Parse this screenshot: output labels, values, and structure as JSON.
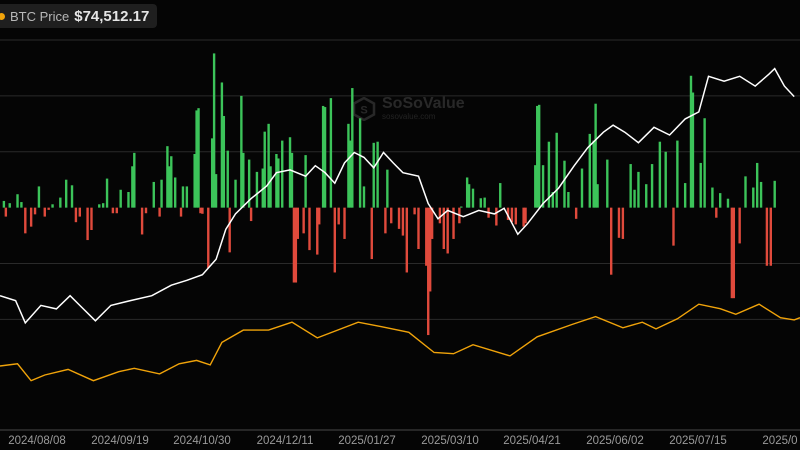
{
  "legend": {
    "label": "BTC Price",
    "value": "$74,512.17",
    "color": "#f0a30a"
  },
  "watermark": {
    "title": "SoSoValue",
    "subtitle": "sosovalue.com"
  },
  "chart_data": {
    "type": "bar",
    "grid": true,
    "colors": {
      "positive": "#3cc45a",
      "negative": "#e04a3c",
      "cumulative": "#ffffff",
      "price": "#f0a30a",
      "grid": "#2a2a2a"
    },
    "x_range": [
      "2024-07-20",
      "2025-09-04"
    ],
    "x_ticks": [
      "2024/08/08",
      "2024/09/19",
      "2024/10/30",
      "2024/12/11",
      "2025/01/27",
      "2025/03/10",
      "2025/04/21",
      "2025/06/02",
      "2025/07/15",
      "2025/0"
    ],
    "bar_series": {
      "unit": "USD M",
      "ylim": [
        -1900,
        1500
      ],
      "points": [
        [
          "2024-07-22",
          60
        ],
        [
          "2024-07-23",
          -80
        ],
        [
          "2024-07-25",
          40
        ],
        [
          "2024-07-29",
          120
        ],
        [
          "2024-07-31",
          50
        ],
        [
          "2024-08-02",
          -230
        ],
        [
          "2024-08-05",
          -170
        ],
        [
          "2024-08-07",
          -60
        ],
        [
          "2024-08-09",
          190
        ],
        [
          "2024-08-12",
          -80
        ],
        [
          "2024-08-14",
          -20
        ],
        [
          "2024-08-16",
          30
        ],
        [
          "2024-08-20",
          90
        ],
        [
          "2024-08-23",
          250
        ],
        [
          "2024-08-26",
          200
        ],
        [
          "2024-08-28",
          -130
        ],
        [
          "2024-08-30",
          -80
        ],
        [
          "2024-09-03",
          -290
        ],
        [
          "2024-09-05",
          -200
        ],
        [
          "2024-09-09",
          30
        ],
        [
          "2024-09-11",
          40
        ],
        [
          "2024-09-13",
          260
        ],
        [
          "2024-09-16",
          -50
        ],
        [
          "2024-09-18",
          -50
        ],
        [
          "2024-09-20",
          160
        ],
        [
          "2024-09-24",
          140
        ],
        [
          "2024-09-26",
          370
        ],
        [
          "2024-09-27",
          490
        ],
        [
          "2024-10-01",
          -240
        ],
        [
          "2024-10-03",
          -50
        ],
        [
          "2024-10-07",
          230
        ],
        [
          "2024-10-10",
          -80
        ],
        [
          "2024-10-11",
          250
        ],
        [
          "2024-10-14",
          550
        ],
        [
          "2024-10-15",
          370
        ],
        [
          "2024-10-16",
          460
        ],
        [
          "2024-10-18",
          270
        ],
        [
          "2024-10-21",
          -80
        ],
        [
          "2024-10-22",
          190
        ],
        [
          "2024-10-24",
          190
        ],
        [
          "2024-10-28",
          480
        ],
        [
          "2024-10-29",
          870
        ],
        [
          "2024-10-30",
          890
        ],
        [
          "2024-10-31",
          -50
        ],
        [
          "2024-11-01",
          -55
        ],
        [
          "2024-11-04",
          -540
        ],
        [
          "2024-11-06",
          620
        ],
        [
          "2024-11-07",
          1380
        ],
        [
          "2024-11-08",
          300
        ],
        [
          "2024-11-11",
          1120
        ],
        [
          "2024-11-12",
          820
        ],
        [
          "2024-11-14",
          510
        ],
        [
          "2024-11-15",
          -400
        ],
        [
          "2024-11-18",
          250
        ],
        [
          "2024-11-21",
          1000
        ],
        [
          "2024-11-22",
          490
        ],
        [
          "2024-11-25",
          430
        ],
        [
          "2024-11-26",
          -120
        ],
        [
          "2024-11-29",
          320
        ],
        [
          "2024-12-02",
          350
        ],
        [
          "2024-12-03",
          680
        ],
        [
          "2024-12-05",
          750
        ],
        [
          "2024-12-06",
          370
        ],
        [
          "2024-12-09",
          480
        ],
        [
          "2024-12-10",
          440
        ],
        [
          "2024-12-12",
          600
        ],
        [
          "2024-12-16",
          630
        ],
        [
          "2024-12-17",
          490
        ],
        [
          "2024-12-18",
          -670
        ],
        [
          "2024-12-19",
          -670
        ],
        [
          "2024-12-20",
          -280
        ],
        [
          "2024-12-23",
          -230
        ],
        [
          "2024-12-24",
          470
        ],
        [
          "2024-12-26",
          -380
        ],
        [
          "2024-12-30",
          -420
        ],
        [
          "2024-12-31",
          -150
        ],
        [
          "2025-01-02",
          910
        ],
        [
          "2025-01-03",
          900
        ],
        [
          "2025-01-06",
          980
        ],
        [
          "2025-01-08",
          -580
        ],
        [
          "2025-01-10",
          -150
        ],
        [
          "2025-01-13",
          -280
        ],
        [
          "2025-01-15",
          750
        ],
        [
          "2025-01-16",
          600
        ],
        [
          "2025-01-17",
          1070
        ],
        [
          "2025-01-21",
          800
        ],
        [
          "2025-01-23",
          190
        ],
        [
          "2025-01-27",
          -460
        ],
        [
          "2025-01-28",
          580
        ],
        [
          "2025-01-30",
          590
        ],
        [
          "2025-02-03",
          -230
        ],
        [
          "2025-02-04",
          340
        ],
        [
          "2025-02-06",
          -140
        ],
        [
          "2025-02-10",
          -190
        ],
        [
          "2025-02-12",
          -250
        ],
        [
          "2025-02-14",
          -580
        ],
        [
          "2025-02-18",
          -60
        ],
        [
          "2025-02-20",
          -370
        ],
        [
          "2025-02-24",
          -520
        ],
        [
          "2025-02-25",
          -1140
        ],
        [
          "2025-02-26",
          -750
        ],
        [
          "2025-02-27",
          -280
        ],
        [
          "2025-03-03",
          -140
        ],
        [
          "2025-03-05",
          -370
        ],
        [
          "2025-03-07",
          -410
        ],
        [
          "2025-03-10",
          -280
        ],
        [
          "2025-03-13",
          -140
        ],
        [
          "2025-03-14",
          10
        ],
        [
          "2025-03-17",
          270
        ],
        [
          "2025-03-18",
          210
        ],
        [
          "2025-03-20",
          170
        ],
        [
          "2025-03-24",
          84
        ],
        [
          "2025-03-26",
          90
        ],
        [
          "2025-03-28",
          -90
        ],
        [
          "2025-04-01",
          -160
        ],
        [
          "2025-04-03",
          220
        ],
        [
          "2025-04-07",
          -110
        ],
        [
          "2025-04-09",
          -130
        ],
        [
          "2025-04-11",
          -150
        ],
        [
          "2025-04-15",
          -170
        ],
        [
          "2025-04-16",
          -140
        ],
        [
          "2025-04-21",
          380
        ],
        [
          "2025-04-22",
          910
        ],
        [
          "2025-04-23",
          920
        ],
        [
          "2025-04-25",
          380
        ],
        [
          "2025-04-28",
          590
        ],
        [
          "2025-04-30",
          140
        ],
        [
          "2025-05-02",
          670
        ],
        [
          "2025-05-06",
          420
        ],
        [
          "2025-05-08",
          140
        ],
        [
          "2025-05-12",
          -100
        ],
        [
          "2025-05-15",
          350
        ],
        [
          "2025-05-19",
          660
        ],
        [
          "2025-05-21",
          600
        ],
        [
          "2025-05-22",
          930
        ],
        [
          "2025-05-23",
          210
        ],
        [
          "2025-05-28",
          430
        ],
        [
          "2025-05-30",
          -600
        ],
        [
          "2025-06-03",
          -270
        ],
        [
          "2025-06-05",
          -280
        ],
        [
          "2025-06-09",
          390
        ],
        [
          "2025-06-11",
          160
        ],
        [
          "2025-06-13",
          320
        ],
        [
          "2025-06-17",
          210
        ],
        [
          "2025-06-20",
          390
        ],
        [
          "2025-06-24",
          590
        ],
        [
          "2025-06-27",
          500
        ],
        [
          "2025-07-01",
          -340
        ],
        [
          "2025-07-03",
          600
        ],
        [
          "2025-07-07",
          220
        ],
        [
          "2025-07-10",
          1180
        ],
        [
          "2025-07-11",
          1030
        ],
        [
          "2025-07-15",
          400
        ],
        [
          "2025-07-17",
          800
        ],
        [
          "2025-07-21",
          180
        ],
        [
          "2025-07-23",
          -90
        ],
        [
          "2025-07-25",
          130
        ],
        [
          "2025-07-29",
          80
        ],
        [
          "2025-07-31",
          -810
        ],
        [
          "2025-08-01",
          -810
        ],
        [
          "2025-08-04",
          -320
        ],
        [
          "2025-08-07",
          280
        ],
        [
          "2025-08-11",
          180
        ],
        [
          "2025-08-13",
          400
        ],
        [
          "2025-08-15",
          230
        ],
        [
          "2025-08-18",
          -520
        ],
        [
          "2025-08-20",
          -520
        ],
        [
          "2025-08-22",
          240
        ]
      ]
    },
    "cumulative_series": {
      "unit": "USD B",
      "ylim": [
        3.6,
        58
      ],
      "points": [
        [
          "2024-07-20",
          21.4
        ],
        [
          "2024-07-28",
          20.7
        ],
        [
          "2024-08-02",
          17.5
        ],
        [
          "2024-08-10",
          20.0
        ],
        [
          "2024-08-18",
          19.5
        ],
        [
          "2024-08-25",
          21.4
        ],
        [
          "2024-08-30",
          20.0
        ],
        [
          "2024-09-07",
          17.8
        ],
        [
          "2024-09-15",
          20.0
        ],
        [
          "2024-09-25",
          20.7
        ],
        [
          "2024-10-06",
          21.4
        ],
        [
          "2024-10-16",
          22.9
        ],
        [
          "2024-10-24",
          23.6
        ],
        [
          "2024-11-01",
          24.4
        ],
        [
          "2024-11-08",
          26.6
        ],
        [
          "2024-11-13",
          30.9
        ],
        [
          "2024-11-18",
          33.1
        ],
        [
          "2024-11-26",
          35.3
        ],
        [
          "2024-12-04",
          37.1
        ],
        [
          "2024-12-09",
          39.0
        ],
        [
          "2024-12-16",
          39.4
        ],
        [
          "2024-12-24",
          38.5
        ],
        [
          "2024-12-29",
          40.0
        ],
        [
          "2025-01-03",
          39.0
        ],
        [
          "2025-01-08",
          37.5
        ],
        [
          "2025-01-13",
          40.4
        ],
        [
          "2025-01-18",
          41.9
        ],
        [
          "2025-01-23",
          41.2
        ],
        [
          "2025-01-28",
          39.7
        ],
        [
          "2025-02-02",
          41.9
        ],
        [
          "2025-02-07",
          40.4
        ],
        [
          "2025-02-12",
          39.0
        ],
        [
          "2025-02-20",
          38.5
        ],
        [
          "2025-02-25",
          34.6
        ],
        [
          "2025-03-02",
          32.4
        ],
        [
          "2025-03-07",
          33.6
        ],
        [
          "2025-03-15",
          32.7
        ],
        [
          "2025-03-23",
          33.6
        ],
        [
          "2025-03-31",
          33.1
        ],
        [
          "2025-04-05",
          33.9
        ],
        [
          "2025-04-12",
          30.2
        ],
        [
          "2025-04-17",
          31.7
        ],
        [
          "2025-04-25",
          34.6
        ],
        [
          "2025-05-03",
          36.8
        ],
        [
          "2025-05-11",
          40.0
        ],
        [
          "2025-05-18",
          42.6
        ],
        [
          "2025-05-26",
          44.8
        ],
        [
          "2025-05-31",
          45.8
        ],
        [
          "2025-06-06",
          44.8
        ],
        [
          "2025-06-13",
          43.3
        ],
        [
          "2025-06-21",
          45.5
        ],
        [
          "2025-06-29",
          44.4
        ],
        [
          "2025-07-07",
          46.7
        ],
        [
          "2025-07-14",
          47.7
        ],
        [
          "2025-07-19",
          52.8
        ],
        [
          "2025-07-27",
          52.1
        ],
        [
          "2025-08-04",
          52.8
        ],
        [
          "2025-08-12",
          51.4
        ],
        [
          "2025-08-19",
          53.1
        ],
        [
          "2025-08-22",
          53.9
        ],
        [
          "2025-08-27",
          51.4
        ],
        [
          "2025-09-01",
          49.9
        ]
      ]
    },
    "price_series": {
      "name": "BTC Price",
      "unit": "USD",
      "ylim": [
        19000,
        357000
      ],
      "points": [
        [
          "2024-07-20",
          67000
        ],
        [
          "2024-07-29",
          69000
        ],
        [
          "2024-08-05",
          54000
        ],
        [
          "2024-08-12",
          59000
        ],
        [
          "2024-08-24",
          64000
        ],
        [
          "2024-09-06",
          54000
        ],
        [
          "2024-09-19",
          62000
        ],
        [
          "2024-09-27",
          65000
        ],
        [
          "2024-10-10",
          60000
        ],
        [
          "2024-10-20",
          69000
        ],
        [
          "2024-10-29",
          72000
        ],
        [
          "2024-11-05",
          68000
        ],
        [
          "2024-11-11",
          88000
        ],
        [
          "2024-11-22",
          99000
        ],
        [
          "2024-12-05",
          99000
        ],
        [
          "2024-12-17",
          106000
        ],
        [
          "2024-12-30",
          92000
        ],
        [
          "2025-01-20",
          106000
        ],
        [
          "2025-02-01",
          102000
        ],
        [
          "2025-02-15",
          97000
        ],
        [
          "2025-02-28",
          79000
        ],
        [
          "2025-03-10",
          78000
        ],
        [
          "2025-03-20",
          86000
        ],
        [
          "2025-04-08",
          76000
        ],
        [
          "2025-04-22",
          93000
        ],
        [
          "2025-05-10",
          104000
        ],
        [
          "2025-05-22",
          111000
        ],
        [
          "2025-06-05",
          101000
        ],
        [
          "2025-06-15",
          106000
        ],
        [
          "2025-06-22",
          100000
        ],
        [
          "2025-07-03",
          109000
        ],
        [
          "2025-07-14",
          122000
        ],
        [
          "2025-07-25",
          118000
        ],
        [
          "2025-08-02",
          113000
        ],
        [
          "2025-08-14",
          122000
        ],
        [
          "2025-08-25",
          110000
        ],
        [
          "2025-09-01",
          108000
        ],
        [
          "2025-09-04",
          110000
        ]
      ]
    }
  }
}
